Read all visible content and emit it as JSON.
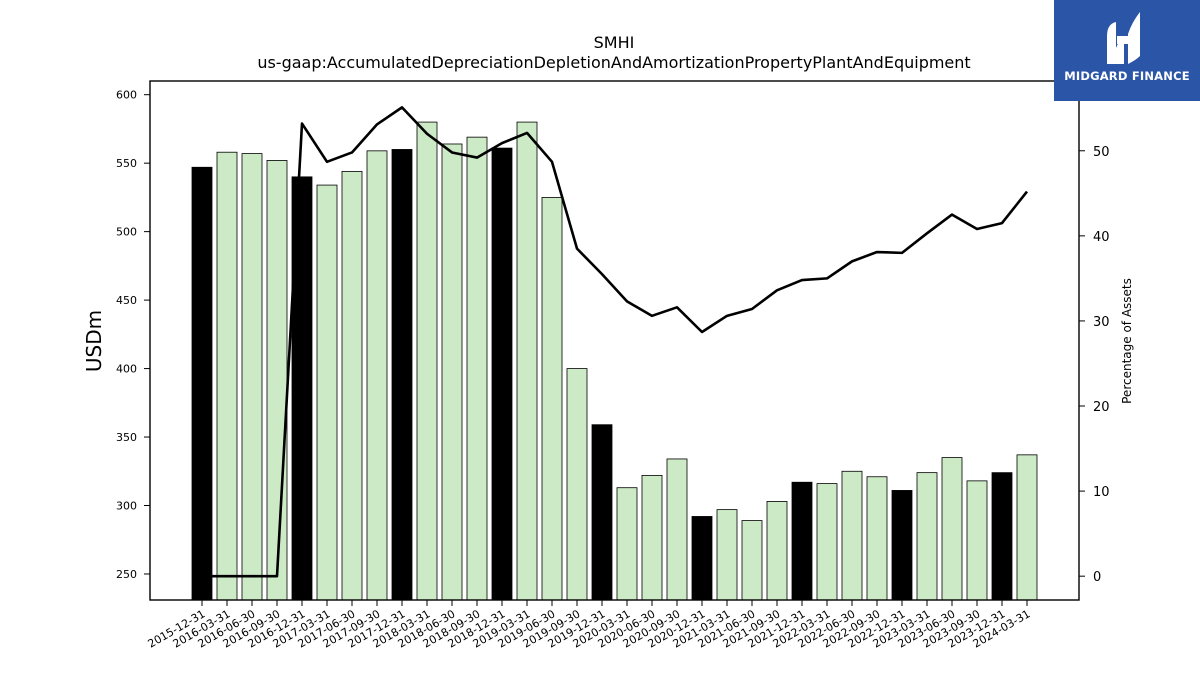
{
  "chart_data": {
    "type": "bar",
    "title": "SMHI",
    "subtitle": "us-gaap:AccumulatedDepreciationDepletionAndAmortizationPropertyPlantAndEquipment",
    "ylabel": "USDm",
    "y2label": "Percentage of Assets",
    "ylim": [
      231,
      610
    ],
    "y2lim": [
      -2.8,
      58.2
    ],
    "yticks": [
      250,
      300,
      350,
      400,
      450,
      500,
      550,
      600
    ],
    "y2ticks": [
      0,
      10,
      20,
      30,
      40,
      50
    ],
    "grid": false,
    "categories": [
      "2015-12-31",
      "2016-03-31",
      "2016-06-30",
      "2016-09-30",
      "2016-12-31",
      "2017-03-31",
      "2017-06-30",
      "2017-09-30",
      "2017-12-31",
      "2018-03-31",
      "2018-06-30",
      "2018-09-30",
      "2018-12-31",
      "2019-03-31",
      "2019-06-30",
      "2019-09-30",
      "2019-12-31",
      "2020-03-31",
      "2020-06-30",
      "2020-09-30",
      "2020-12-31",
      "2021-03-31",
      "2021-06-30",
      "2021-09-30",
      "2021-12-31",
      "2022-03-31",
      "2022-06-30",
      "2022-09-30",
      "2022-12-31",
      "2023-03-31",
      "2023-06-30",
      "2023-09-30",
      "2023-12-31",
      "2024-03-31"
    ],
    "series": [
      {
        "kind": "bar",
        "axis": "left",
        "values": [
          547,
          558,
          557,
          552,
          540,
          534,
          544,
          559,
          560,
          580,
          564,
          569,
          561,
          580,
          525,
          400,
          359,
          313,
          322,
          334,
          292,
          297,
          289,
          303,
          317,
          316,
          325,
          321,
          311,
          324,
          335,
          318,
          324,
          337
        ],
        "year_end_flags": [
          1,
          0,
          0,
          0,
          1,
          0,
          0,
          0,
          1,
          0,
          0,
          0,
          1,
          0,
          0,
          0,
          1,
          0,
          0,
          0,
          1,
          0,
          0,
          0,
          1,
          0,
          0,
          0,
          1,
          0,
          0,
          0,
          1,
          0
        ],
        "color_year_end": "#000000",
        "color_quarter": "#cdeac6"
      },
      {
        "kind": "line",
        "axis": "right",
        "color": "#000000",
        "values": [
          0,
          0,
          0,
          0,
          53.2,
          48.7,
          49.8,
          53.1,
          55.1,
          52,
          49.8,
          49.2,
          50.9,
          52.1,
          48.7,
          38.5,
          35.5,
          32.3,
          30.6,
          31.6,
          28.7,
          30.6,
          31.4,
          33.6,
          34.8,
          35,
          37,
          38.1,
          38,
          40.3,
          42.5,
          40.8,
          41.5,
          45.2
        ]
      }
    ]
  },
  "logo": {
    "text": "MIDGARD FINANCE",
    "bg_color": "#2b56a8"
  }
}
